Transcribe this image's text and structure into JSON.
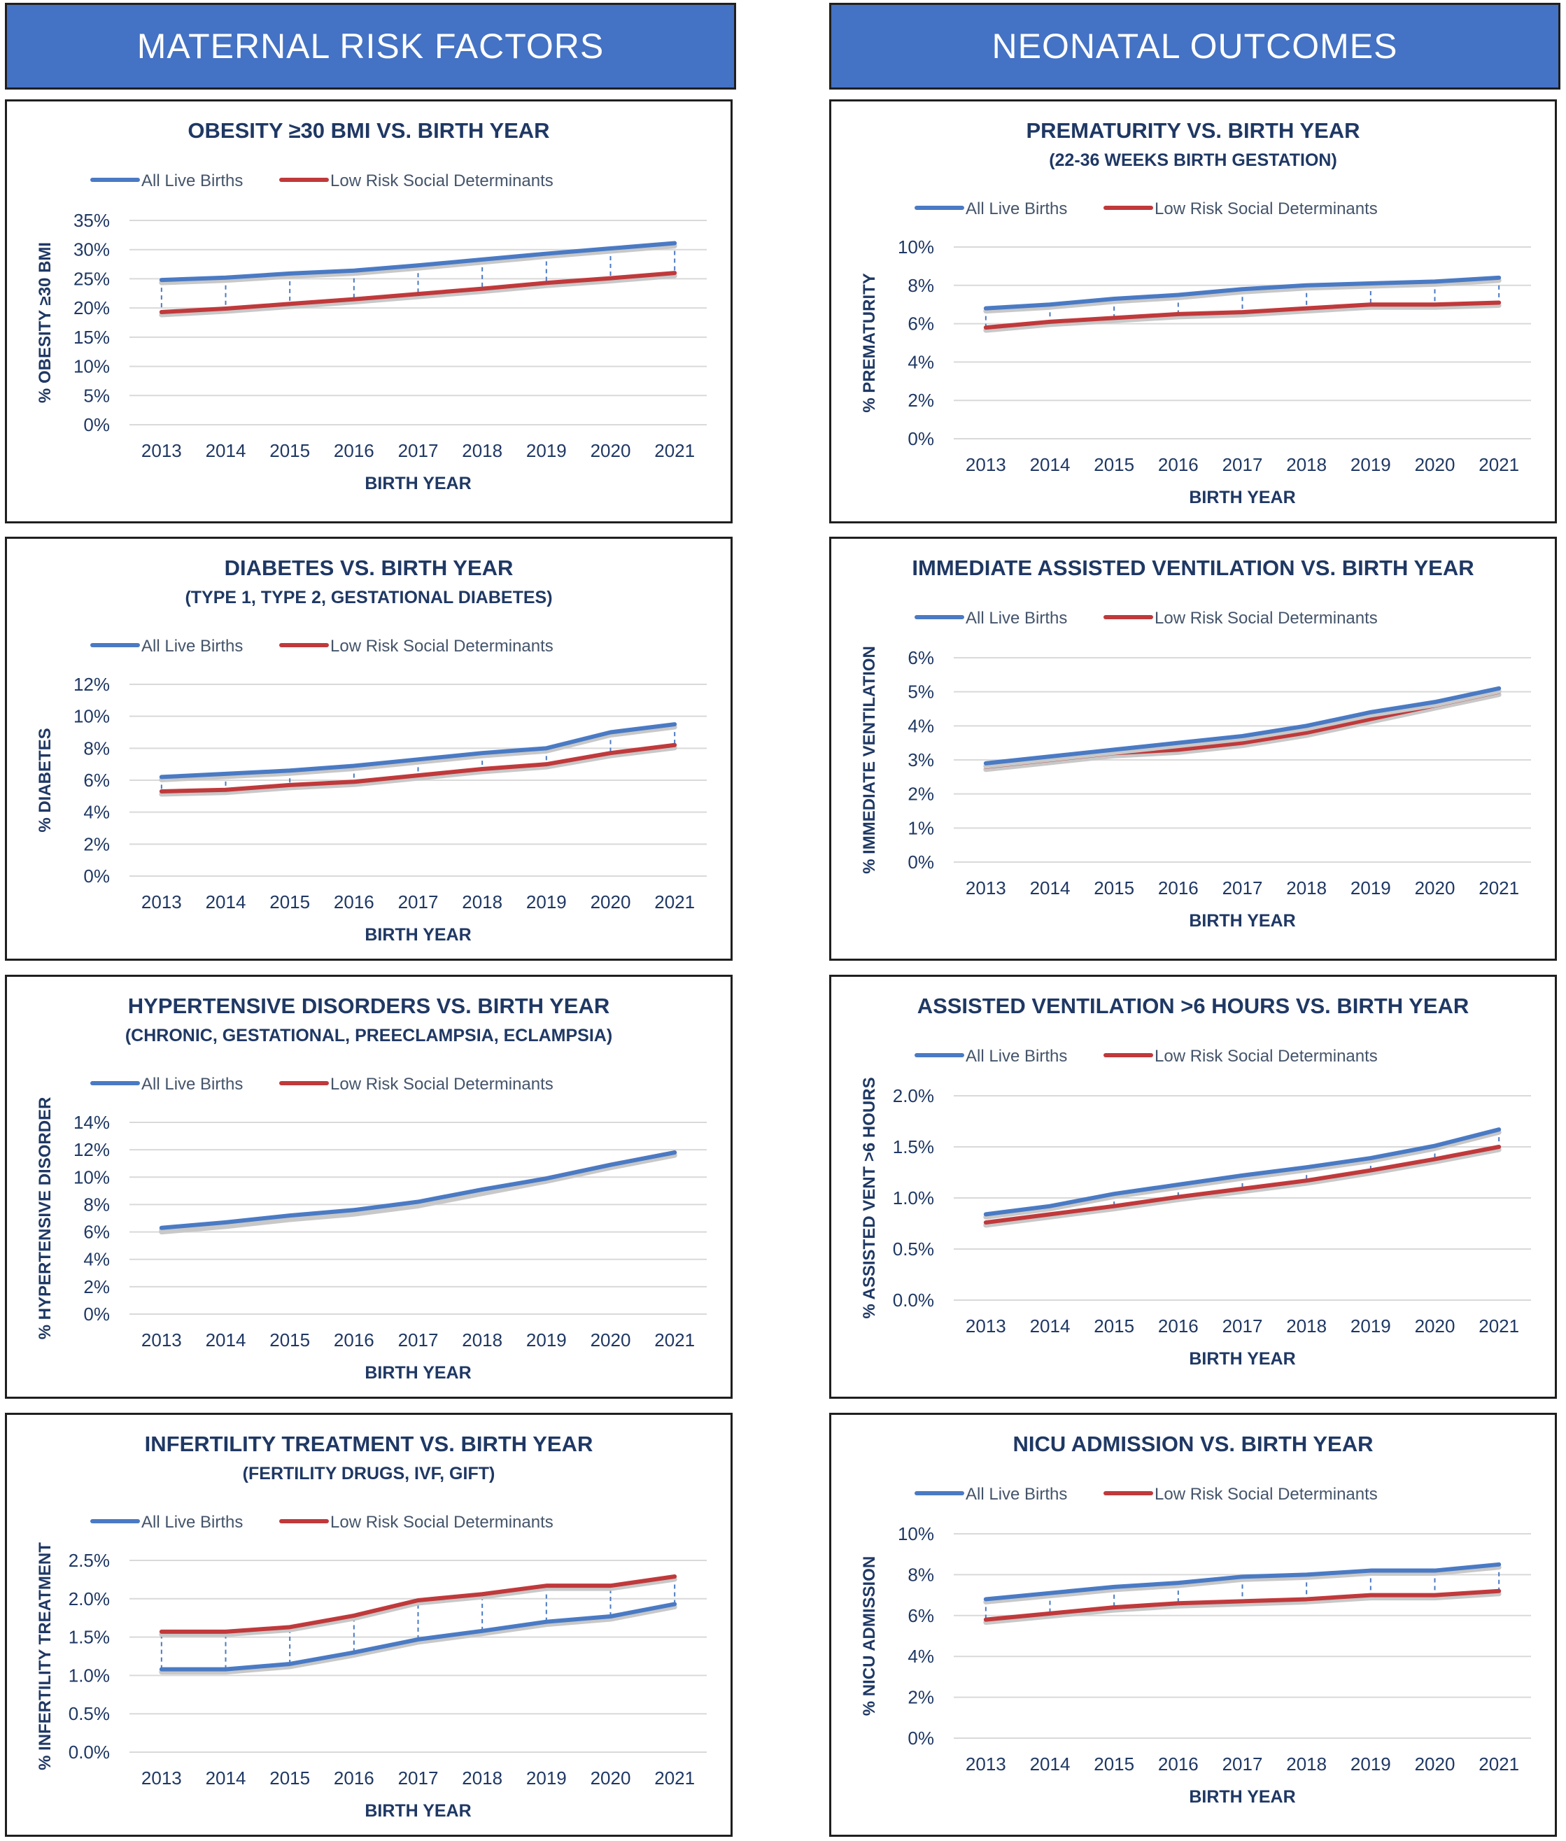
{
  "headers": {
    "left": "MATERNAL RISK FACTORS",
    "right": "NEONATAL OUTCOMES"
  },
  "legend": {
    "all": "All Live Births",
    "low": "Low Risk Social Determinants"
  },
  "colors": {
    "header": "#4472c4",
    "all_live_births": "#4a7ac4",
    "low_risk": "#c0393b",
    "title_text": "#1f3864"
  },
  "chart_data": [
    {
      "id": "obesity",
      "type": "line",
      "title": "OBESITY ≥30 BMI VS. BIRTH YEAR",
      "subtitle": "",
      "xlabel": "BIRTH YEAR",
      "ylabel": "% OBESITY ≥30 BMI",
      "x": [
        "2013",
        "2014",
        "2015",
        "2016",
        "2017",
        "2018",
        "2019",
        "2020",
        "2021"
      ],
      "yticks": [
        "0%",
        "5%",
        "10%",
        "15%",
        "20%",
        "25%",
        "30%",
        "35%"
      ],
      "ylim": [
        0,
        35
      ],
      "grid": true,
      "legend_position": "top",
      "series": [
        {
          "name": "All Live Births",
          "values": [
            24.8,
            25.2,
            25.9,
            26.4,
            27.3,
            28.3,
            29.3,
            30.2,
            31.1
          ]
        },
        {
          "name": "Low Risk Social Determinants",
          "values": [
            19.3,
            19.9,
            20.7,
            21.5,
            22.4,
            23.3,
            24.3,
            25.1,
            26.0
          ]
        }
      ]
    },
    {
      "id": "prematurity",
      "type": "line",
      "title": "PREMATURITY VS. BIRTH YEAR",
      "subtitle": "(22-36 WEEKS BIRTH GESTATION)",
      "xlabel": "BIRTH YEAR",
      "ylabel": "% PREMATURITY",
      "x": [
        "2013",
        "2014",
        "2015",
        "2016",
        "2017",
        "2018",
        "2019",
        "2020",
        "2021"
      ],
      "yticks": [
        "0%",
        "2%",
        "4%",
        "6%",
        "8%",
        "10%"
      ],
      "ylim": [
        0,
        10
      ],
      "grid": true,
      "legend_position": "top",
      "series": [
        {
          "name": "All Live Births",
          "values": [
            6.8,
            7.0,
            7.3,
            7.5,
            7.8,
            8.0,
            8.1,
            8.2,
            8.4
          ]
        },
        {
          "name": "Low Risk Social Determinants",
          "values": [
            5.8,
            6.1,
            6.3,
            6.5,
            6.6,
            6.8,
            7.0,
            7.0,
            7.1
          ]
        }
      ]
    },
    {
      "id": "diabetes",
      "type": "line",
      "title": "DIABETES VS. BIRTH YEAR",
      "subtitle": "(TYPE 1, TYPE 2, GESTATIONAL DIABETES)",
      "xlabel": "BIRTH YEAR",
      "ylabel": "% DIABETES",
      "x": [
        "2013",
        "2014",
        "2015",
        "2016",
        "2017",
        "2018",
        "2019",
        "2020",
        "2021"
      ],
      "yticks": [
        "0%",
        "2%",
        "4%",
        "6%",
        "8%",
        "10%",
        "12%"
      ],
      "ylim": [
        0,
        12
      ],
      "grid": true,
      "legend_position": "top",
      "series": [
        {
          "name": "All Live Births",
          "values": [
            6.2,
            6.4,
            6.6,
            6.9,
            7.3,
            7.7,
            8.0,
            9.0,
            9.5
          ]
        },
        {
          "name": "Low Risk Social Determinants",
          "values": [
            5.3,
            5.4,
            5.7,
            5.9,
            6.3,
            6.7,
            7.0,
            7.7,
            8.2
          ]
        }
      ]
    },
    {
      "id": "immediate_ventilation",
      "type": "line",
      "title": "IMMEDIATE ASSISTED VENTILATION VS. BIRTH YEAR",
      "subtitle": "",
      "xlabel": "BIRTH YEAR",
      "ylabel": "% IMMEDIATE VENTILATION",
      "x": [
        "2013",
        "2014",
        "2015",
        "2016",
        "2017",
        "2018",
        "2019",
        "2020",
        "2021"
      ],
      "yticks": [
        "0%",
        "1%",
        "2%",
        "3%",
        "4%",
        "5%",
        "6%"
      ],
      "ylim": [
        0,
        6
      ],
      "grid": true,
      "legend_position": "top",
      "series": [
        {
          "name": "All Live Births",
          "values": [
            2.9,
            3.1,
            3.3,
            3.5,
            3.7,
            4.0,
            4.4,
            4.7,
            5.1
          ]
        },
        {
          "name": "Low Risk Social Determinants",
          "values": [
            2.8,
            3.0,
            3.2,
            3.3,
            3.5,
            3.8,
            4.2,
            4.6,
            5.0
          ]
        }
      ]
    },
    {
      "id": "hypertensive",
      "type": "line",
      "title": "HYPERTENSIVE DISORDERS VS. BIRTH YEAR",
      "subtitle": "(CHRONIC, GESTATIONAL, PREECLAMPSIA, ECLAMPSIA)",
      "xlabel": "BIRTH YEAR",
      "ylabel": "% HYPERTENSIVE DISORDER",
      "x": [
        "2013",
        "2014",
        "2015",
        "2016",
        "2017",
        "2018",
        "2019",
        "2020",
        "2021"
      ],
      "yticks": [
        "0%",
        "2%",
        "4%",
        "6%",
        "8%",
        "10%",
        "12%",
        "14%"
      ],
      "ylim": [
        0,
        14
      ],
      "grid": true,
      "legend_position": "top",
      "series": [
        {
          "name": "All Live Births",
          "values": [
            6.3,
            6.7,
            7.2,
            7.6,
            8.2,
            9.1,
            9.9,
            10.9,
            11.8
          ]
        },
        {
          "name": "Low Risk Social Determinants",
          "values": [
            6.2,
            6.6,
            7.1,
            7.5,
            8.1,
            9.0,
            9.9,
            10.9,
            11.8
          ]
        }
      ]
    },
    {
      "id": "ventilation_6h",
      "type": "line",
      "title": "ASSISTED VENTILATION >6 HOURS VS. BIRTH YEAR",
      "subtitle": "",
      "xlabel": "BIRTH YEAR",
      "ylabel": "% ASSISTED VENT >6 HOURS",
      "x": [
        "2013",
        "2014",
        "2015",
        "2016",
        "2017",
        "2018",
        "2019",
        "2020",
        "2021"
      ],
      "yticks": [
        "0.0%",
        "0.5%",
        "1.0%",
        "1.5%",
        "2.0%"
      ],
      "ylim": [
        0,
        2.0
      ],
      "grid": true,
      "legend_position": "top",
      "series": [
        {
          "name": "All Live Births",
          "values": [
            0.84,
            0.92,
            1.04,
            1.13,
            1.22,
            1.3,
            1.39,
            1.51,
            1.67
          ]
        },
        {
          "name": "Low Risk Social Determinants",
          "values": [
            0.76,
            0.84,
            0.92,
            1.01,
            1.09,
            1.17,
            1.27,
            1.38,
            1.5
          ]
        }
      ]
    },
    {
      "id": "infertility",
      "type": "line",
      "title": "INFERTILITY TREATMENT VS. BIRTH YEAR",
      "subtitle": "(FERTILITY DRUGS, IVF, GIFT)",
      "xlabel": "BIRTH YEAR",
      "ylabel": "% INFERTILITY TREATMENT",
      "x": [
        "2013",
        "2014",
        "2015",
        "2016",
        "2017",
        "2018",
        "2019",
        "2020",
        "2021"
      ],
      "yticks": [
        "0.0%",
        "0.5%",
        "1.0%",
        "1.5%",
        "2.0%",
        "2.5%"
      ],
      "ylim": [
        0,
        2.5
      ],
      "grid": true,
      "legend_position": "top",
      "series": [
        {
          "name": "All Live Births",
          "values": [
            1.08,
            1.08,
            1.15,
            1.3,
            1.47,
            1.58,
            1.7,
            1.77,
            1.93
          ]
        },
        {
          "name": "Low Risk Social Determinants",
          "values": [
            1.57,
            1.57,
            1.63,
            1.78,
            1.98,
            2.06,
            2.17,
            2.17,
            2.29
          ]
        }
      ]
    },
    {
      "id": "nicu",
      "type": "line",
      "title": "NICU ADMISSION VS. BIRTH YEAR",
      "subtitle": "",
      "xlabel": "BIRTH YEAR",
      "ylabel": "% NICU ADMISSION",
      "x": [
        "2013",
        "2014",
        "2015",
        "2016",
        "2017",
        "2018",
        "2019",
        "2020",
        "2021"
      ],
      "yticks": [
        "0%",
        "2%",
        "4%",
        "6%",
        "8%",
        "10%"
      ],
      "ylim": [
        0,
        10
      ],
      "grid": true,
      "legend_position": "top",
      "series": [
        {
          "name": "All Live Births",
          "values": [
            6.8,
            7.1,
            7.4,
            7.6,
            7.9,
            8.0,
            8.2,
            8.2,
            8.5
          ]
        },
        {
          "name": "Low Risk Social Determinants",
          "values": [
            5.8,
            6.1,
            6.4,
            6.6,
            6.7,
            6.8,
            7.0,
            7.0,
            7.2
          ]
        }
      ]
    }
  ]
}
